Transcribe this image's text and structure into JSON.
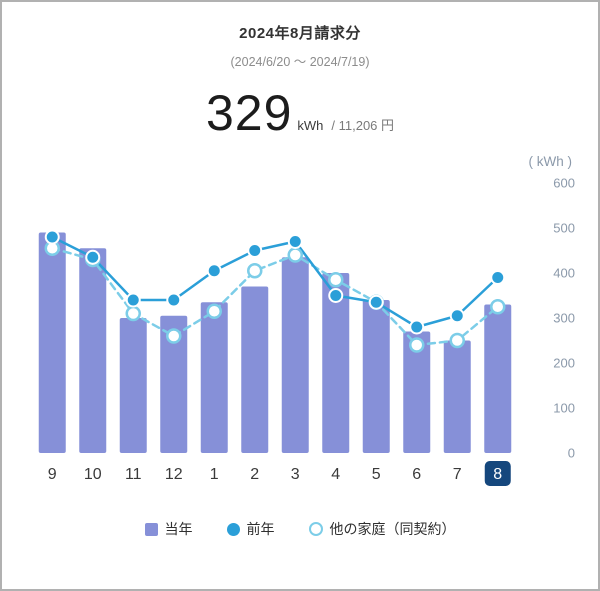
{
  "header": {
    "title": "2024年8月請求分",
    "period": "(2024/6/20 ～ 2024/7/19)"
  },
  "usage": {
    "value": "329",
    "unit": "kWh",
    "cost": "/ 11,206 円"
  },
  "chart_data": {
    "type": "bar",
    "unit_label": "( kWh )",
    "categories": [
      "9",
      "10",
      "11",
      "12",
      "1",
      "2",
      "3",
      "4",
      "5",
      "6",
      "7",
      "8"
    ],
    "highlighted_category": "8",
    "highlight_color": "#15477d",
    "ylim": [
      0,
      600
    ],
    "yticks": [
      0,
      100,
      200,
      300,
      400,
      500,
      600
    ],
    "grid": false,
    "legend_position": "bottom",
    "series": [
      {
        "name": "当年",
        "type": "bar",
        "color": "#8690d8",
        "values": [
          490,
          455,
          300,
          305,
          335,
          370,
          435,
          400,
          340,
          270,
          250,
          330
        ]
      },
      {
        "name": "前年",
        "type": "line",
        "style": "solid",
        "color": "#2b9fd8",
        "values": [
          480,
          435,
          340,
          340,
          405,
          450,
          470,
          350,
          335,
          280,
          305,
          390
        ]
      },
      {
        "name": "他の家庭（同契約）",
        "type": "line",
        "style": "dashed",
        "color": "#7ccde8",
        "values": [
          455,
          430,
          310,
          260,
          315,
          405,
          440,
          385,
          335,
          240,
          250,
          325
        ]
      }
    ]
  }
}
